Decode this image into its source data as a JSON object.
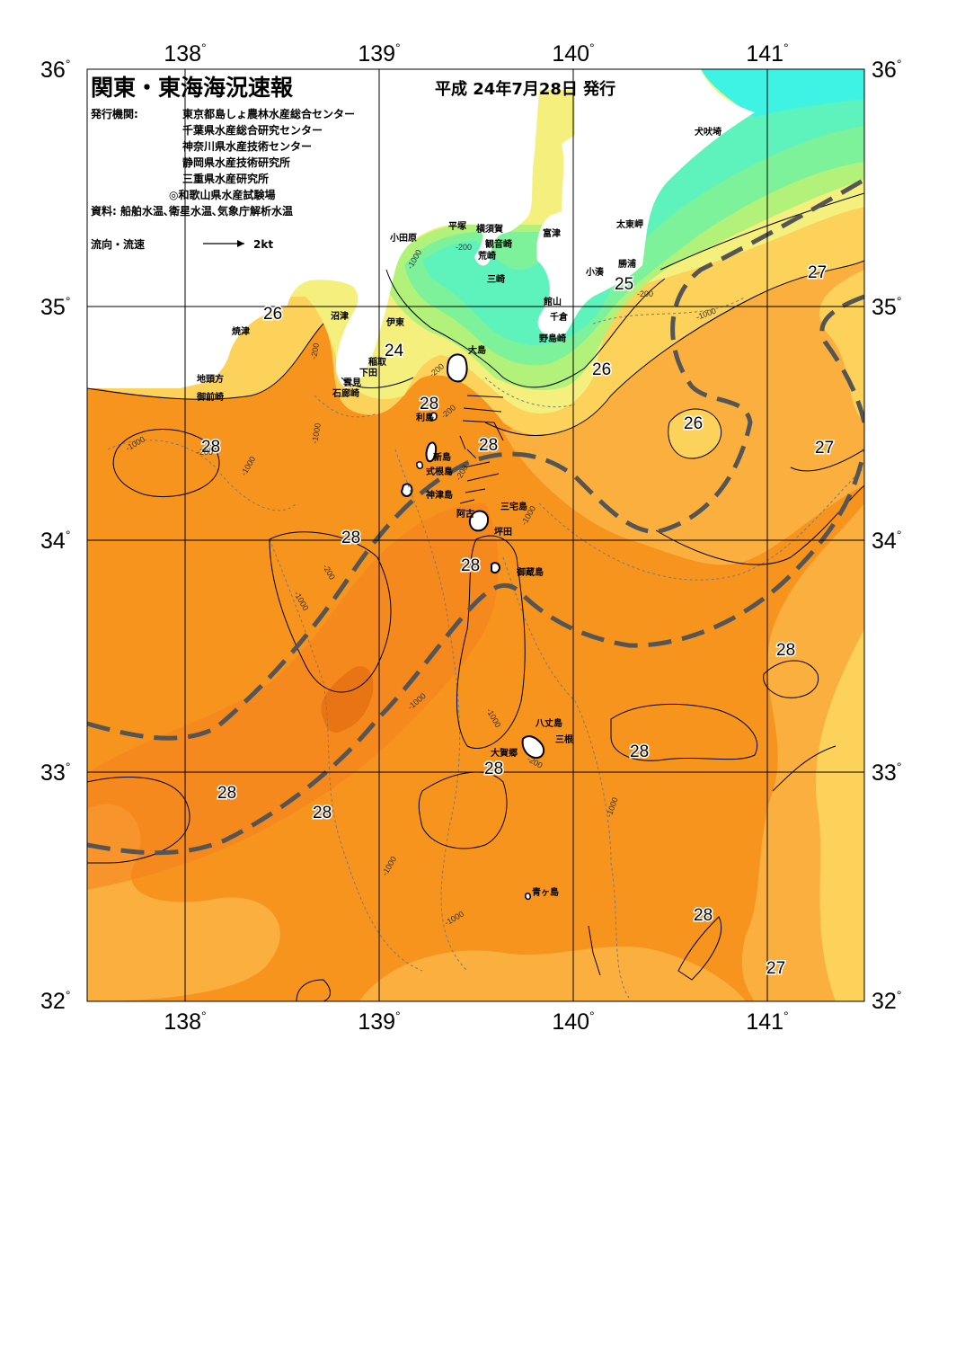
{
  "title": "関東・東海海況速報",
  "issue_date": "平成 24年7月28日 発行",
  "issuers_label": "発行機関:",
  "issuers": [
    "東京都島しょ農林水産総合センター",
    "千葉県水産総合研究センター",
    "神奈川県水産技術センター",
    "静岡県水産技術研究所",
    "三重県水産研究所",
    "◎和歌山県水産試験場"
  ],
  "sources": "資料: 船舶水温､衛星水温､気象庁解析水温",
  "legend": {
    "label": "流向・流速",
    "scale": "2kt"
  },
  "axes": {
    "lon_labels": [
      "138",
      "139",
      "140",
      "141"
    ],
    "lat_labels": [
      "36",
      "35",
      "34",
      "33",
      "32"
    ],
    "degree_symbol": "°"
  },
  "colors": {
    "land": "#ffffff",
    "t28": "#f7941d",
    "t28_dark": "#f58220",
    "t29": "#d86000",
    "t27": "#fbaf3f",
    "t26": "#fdd25a",
    "t25": "#f5f07e",
    "t24": "#b2f27a",
    "t23": "#7df29a",
    "t22": "#5ef2bd",
    "t21": "#3ff3e4",
    "kuroshio_axis": "#555555"
  },
  "places": [
    "犬吠埼",
    "太東岬",
    "勝浦",
    "小湊",
    "館山",
    "千倉",
    "野島崎",
    "富津",
    "観音崎",
    "横須賀",
    "荒崎",
    "三崎",
    "平塚",
    "小田原",
    "伊東",
    "稲取",
    "下田",
    "雲見",
    "石廊崎",
    "沼津",
    "焼津",
    "地頭方",
    "御前崎",
    "大島",
    "利島",
    "新島",
    "式根島",
    "神津島",
    "三宅島",
    "阿古",
    "坪田",
    "御蔵島",
    "八丈島",
    "三根",
    "大賀郷",
    "青ヶ島"
  ],
  "isotherm_labels": [
    "26",
    "24",
    "25",
    "27",
    "26",
    "28",
    "26",
    "27",
    "28",
    "28",
    "28",
    "28",
    "28",
    "28",
    "28",
    "28",
    "28",
    "28",
    "28",
    "27"
  ],
  "depth_labels": [
    "-200",
    "-1000",
    "-200",
    "-1000",
    "-200",
    "-1000",
    "-200",
    "-200",
    "-1000",
    "-200",
    "-1000",
    "-1000",
    "-200",
    "-1000",
    "-200",
    "-1000",
    "-1000",
    "-1000",
    "-1000",
    "-200",
    "-1000"
  ]
}
